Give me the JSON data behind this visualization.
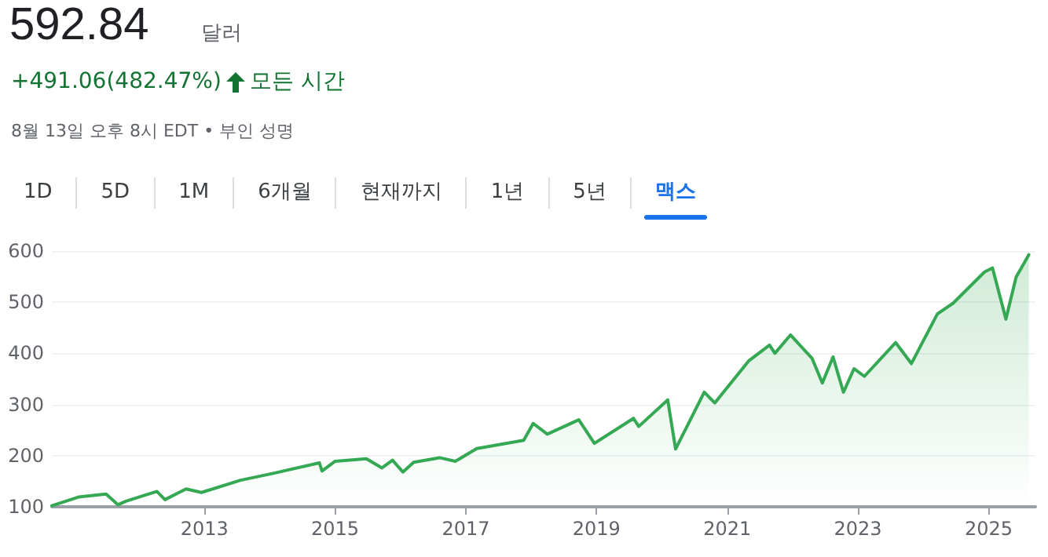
{
  "chart_data": {
    "type": "area",
    "title": "592.84",
    "subtitle": "달러",
    "annotations": [
      "+491.06(482.47%)",
      "모든 시간",
      "8월 13일 오후 8시 EDT",
      "• 부인 성명",
      "1D",
      "5D",
      "1M",
      "6개월",
      "현재까지",
      "1년",
      "5년",
      "맥스"
    ],
    "x": [
      "2010-09-01",
      "2011-01-28",
      "2011-07-01",
      "2011-09-06",
      "2011-10-20",
      "2012-04-10",
      "2012-05-25",
      "2012-09-20",
      "2012-12-15",
      "2013-07-22",
      "2014-01-15",
      "2014-10-05",
      "2014-10-20",
      "2015-01-01",
      "2015-06-25",
      "2015-09-20",
      "2015-11-18",
      "2016-01-15",
      "2016-03-15",
      "2016-08-07",
      "2016-11-03",
      "2017-03-03",
      "2017-11-20",
      "2018-01-12",
      "2018-04-01",
      "2018-09-24",
      "2018-12-20",
      "2019-07-27",
      "2019-08-25",
      "2020-02-03",
      "2020-03-18",
      "2020-08-25",
      "2020-10-23",
      "2021-04-30",
      "2021-08-25",
      "2021-09-24",
      "2021-12-20",
      "2022-04-20",
      "2022-06-16",
      "2022-08-15",
      "2022-10-12",
      "2022-12-10",
      "2023-02-06",
      "2023-07-31",
      "2023-10-27",
      "2024-03-20",
      "2024-06-16",
      "2024-12-08",
      "2025-01-22",
      "2025-04-07",
      "2025-06-03",
      "2025-08-13"
    ],
    "values": [
      102,
      119,
      125,
      104,
      111,
      130,
      114,
      135,
      128,
      152,
      165,
      186,
      170,
      189,
      194,
      176,
      191,
      168,
      187,
      196,
      189,
      214,
      230,
      263,
      242,
      270,
      224,
      273,
      257,
      309,
      213,
      324,
      303,
      385,
      416,
      400,
      436,
      390,
      342,
      393,
      324,
      370,
      355,
      421,
      380,
      477,
      498,
      559,
      567,
      467,
      549,
      592.84
    ],
    "color": "#34a853",
    "xlim": [
      "2010-09-01",
      "2025-09-19"
    ],
    "xticks": [
      "2013",
      "2015",
      "2017",
      "2019",
      "2021",
      "2023",
      "2025"
    ],
    "ylim": [
      100,
      600
    ],
    "yticks": [
      100,
      200,
      300,
      400,
      500,
      600
    ],
    "grid": "y",
    "marker": "none",
    "line_style": "solid"
  }
}
